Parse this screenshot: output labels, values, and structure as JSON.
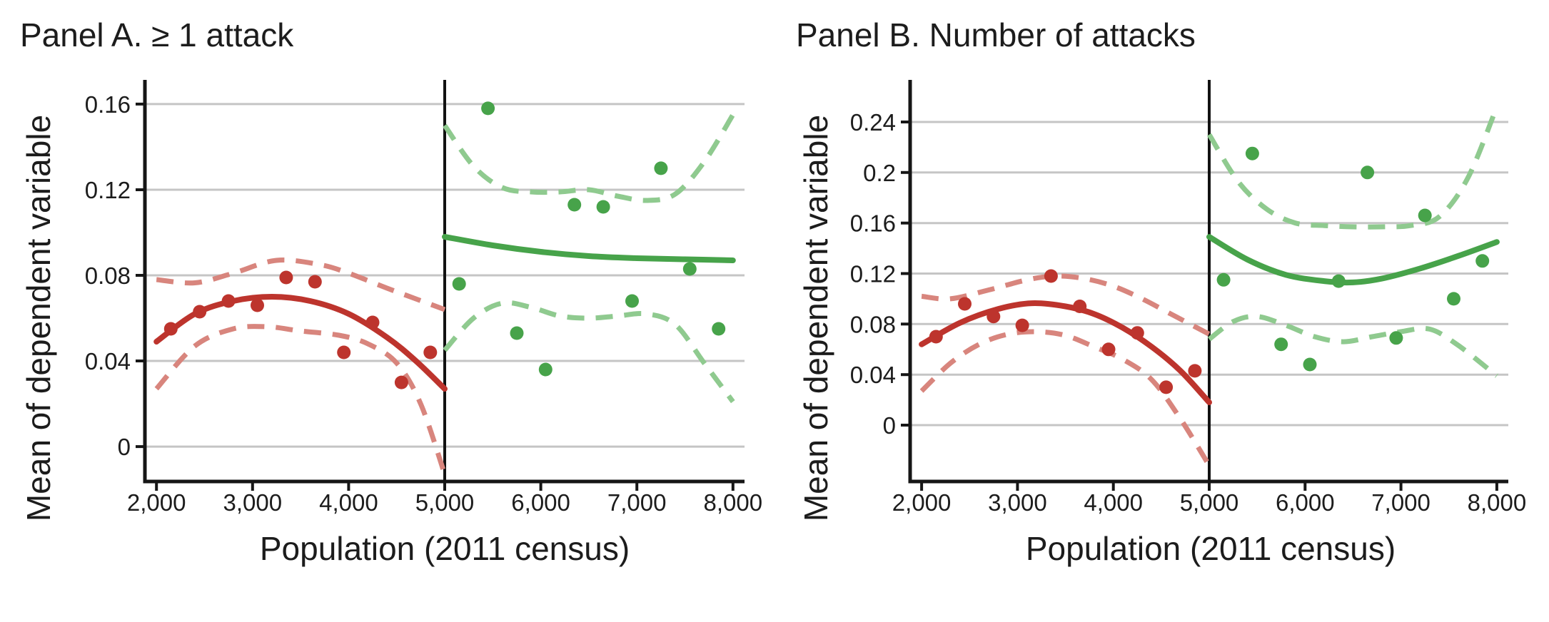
{
  "figure_type": "regression discontinuity binned scatter with quadratic fits and 95% CI bands",
  "colors": {
    "below_solid": "#bd342d",
    "below_dashed": "#d8857d",
    "above_solid": "#47a34a",
    "above_dashed": "#8fca8f",
    "gridline": "#c5c5c5",
    "axis": "#161616",
    "cutoff": "#121212",
    "text": "#1c1c1c"
  },
  "chart_data": [
    {
      "type": "scatter",
      "title": "Panel A. ≥ 1 attack",
      "xlabel": "Population (2011 census)",
      "ylabel": "Mean of dependent variable",
      "x_ticks": [
        2000,
        3000,
        4000,
        5000,
        6000,
        7000,
        8000
      ],
      "x_tick_labels": [
        "2,000",
        "3,000",
        "4,000",
        "5,000",
        "6,000",
        "7,000",
        "8,000"
      ],
      "y_ticks": [
        0,
        0.04,
        0.08,
        0.12,
        0.16
      ],
      "y_tick_labels": [
        "0",
        "0.04",
        "0.08",
        "0.12",
        "0.16"
      ],
      "xlim": [
        1880,
        8120
      ],
      "ylim": [
        -0.0163,
        0.1713
      ],
      "cutoff_x": 5000,
      "grid": "horizontal",
      "legend": "none",
      "series": [
        {
          "id": "ci-upper-below-cutoff",
          "kind": "line",
          "dash": true,
          "color_key": "below_dashed",
          "points": [
            [
              2000,
              0.078
            ],
            [
              2400,
              0.0765
            ],
            [
              2800,
              0.081
            ],
            [
              3250,
              0.087
            ],
            [
              3700,
              0.085
            ],
            [
              4000,
              0.081
            ],
            [
              4400,
              0.074
            ],
            [
              4700,
              0.069
            ],
            [
              5000,
              0.064
            ]
          ]
        },
        {
          "id": "ci-lower-below-cutoff",
          "kind": "line",
          "dash": true,
          "color_key": "below_dashed",
          "points": [
            [
              2000,
              0.027
            ],
            [
              2400,
              0.047
            ],
            [
              2800,
              0.055
            ],
            [
              3150,
              0.056
            ],
            [
              3500,
              0.054
            ],
            [
              3900,
              0.052
            ],
            [
              4200,
              0.048
            ],
            [
              4500,
              0.039
            ],
            [
              4750,
              0.02
            ],
            [
              5000,
              -0.013
            ]
          ]
        },
        {
          "id": "fit-below-cutoff",
          "kind": "line",
          "dash": false,
          "color_key": "below_solid",
          "points": [
            [
              2000,
              0.049
            ],
            [
              2400,
              0.062
            ],
            [
              2800,
              0.068
            ],
            [
              3200,
              0.07
            ],
            [
              3600,
              0.068
            ],
            [
              4000,
              0.062
            ],
            [
              4400,
              0.051
            ],
            [
              4700,
              0.04
            ],
            [
              5000,
              0.027
            ]
          ]
        },
        {
          "id": "ci-upper-above-cutoff",
          "kind": "line",
          "dash": true,
          "color_key": "above_dashed",
          "points": [
            [
              5000,
              0.15
            ],
            [
              5300,
              0.131
            ],
            [
              5600,
              0.121
            ],
            [
              5900,
              0.119
            ],
            [
              6200,
              0.119
            ],
            [
              6500,
              0.12
            ],
            [
              6800,
              0.117
            ],
            [
              7100,
              0.115
            ],
            [
              7400,
              0.118
            ],
            [
              7700,
              0.133
            ],
            [
              8000,
              0.155
            ]
          ]
        },
        {
          "id": "ci-lower-above-cutoff",
          "kind": "line",
          "dash": true,
          "color_key": "above_dashed",
          "points": [
            [
              5000,
              0.045
            ],
            [
              5300,
              0.06
            ],
            [
              5600,
              0.067
            ],
            [
              5900,
              0.065
            ],
            [
              6200,
              0.061
            ],
            [
              6500,
              0.06
            ],
            [
              6800,
              0.061
            ],
            [
              7100,
              0.062
            ],
            [
              7400,
              0.057
            ],
            [
              7700,
              0.039
            ],
            [
              8000,
              0.021
            ]
          ]
        },
        {
          "id": "fit-above-cutoff",
          "kind": "line",
          "dash": false,
          "color_key": "above_solid",
          "points": [
            [
              5000,
              0.098
            ],
            [
              5500,
              0.094
            ],
            [
              6000,
              0.091
            ],
            [
              6500,
              0.089
            ],
            [
              7000,
              0.088
            ],
            [
              7500,
              0.0875
            ],
            [
              8000,
              0.087
            ]
          ]
        },
        {
          "id": "binned-means-below-cutoff",
          "kind": "points",
          "color_key": "below_solid",
          "x": [
            2150,
            2450,
            2750,
            3050,
            3350,
            3650,
            3950,
            4250,
            4550,
            4850
          ],
          "y": [
            0.055,
            0.063,
            0.068,
            0.066,
            0.079,
            0.077,
            0.044,
            0.058,
            0.03,
            0.044
          ]
        },
        {
          "id": "binned-means-above-cutoff",
          "kind": "points",
          "color_key": "above_solid",
          "x": [
            5150,
            5450,
            5750,
            6050,
            6350,
            6650,
            6950,
            7250,
            7550,
            7850
          ],
          "y": [
            0.076,
            0.158,
            0.053,
            0.036,
            0.113,
            0.112,
            0.068,
            0.13,
            0.083,
            0.055
          ]
        }
      ]
    },
    {
      "type": "scatter",
      "title": "Panel B. Number of attacks",
      "xlabel": "Population (2011 census)",
      "ylabel": "Mean of dependent variable",
      "x_ticks": [
        2000,
        3000,
        4000,
        5000,
        6000,
        7000,
        8000
      ],
      "x_tick_labels": [
        "2,000",
        "3,000",
        "4,000",
        "5,000",
        "6,000",
        "7,000",
        "8,000"
      ],
      "y_ticks": [
        0,
        0.04,
        0.08,
        0.12,
        0.16,
        0.2,
        0.24
      ],
      "y_tick_labels": [
        "0",
        "0.04",
        "0.08",
        "0.12",
        "0.16",
        "0.2",
        "0.24"
      ],
      "xlim": [
        1880,
        8120
      ],
      "ylim": [
        -0.0446,
        0.2733
      ],
      "cutoff_x": 5000,
      "grid": "horizontal",
      "legend": "none",
      "series": [
        {
          "id": "ci-upper-below-cutoff",
          "kind": "line",
          "dash": true,
          "color_key": "below_dashed",
          "points": [
            [
              2000,
              0.102
            ],
            [
              2300,
              0.1
            ],
            [
              2700,
              0.107
            ],
            [
              3100,
              0.115
            ],
            [
              3400,
              0.118
            ],
            [
              3700,
              0.116
            ],
            [
              4000,
              0.11
            ],
            [
              4300,
              0.1
            ],
            [
              4600,
              0.088
            ],
            [
              4800,
              0.08
            ],
            [
              5000,
              0.072
            ]
          ]
        },
        {
          "id": "ci-lower-below-cutoff",
          "kind": "line",
          "dash": true,
          "color_key": "below_dashed",
          "points": [
            [
              2000,
              0.027
            ],
            [
              2300,
              0.049
            ],
            [
              2600,
              0.064
            ],
            [
              2900,
              0.072
            ],
            [
              3200,
              0.074
            ],
            [
              3500,
              0.071
            ],
            [
              3800,
              0.062
            ],
            [
              4100,
              0.052
            ],
            [
              4400,
              0.036
            ],
            [
              4700,
              0.005
            ],
            [
              5000,
              -0.032
            ]
          ]
        },
        {
          "id": "fit-below-cutoff",
          "kind": "line",
          "dash": false,
          "color_key": "below_solid",
          "points": [
            [
              2000,
              0.064
            ],
            [
              2400,
              0.081
            ],
            [
              2800,
              0.092
            ],
            [
              3150,
              0.0965
            ],
            [
              3500,
              0.094
            ],
            [
              3800,
              0.088
            ],
            [
              4100,
              0.077
            ],
            [
              4400,
              0.062
            ],
            [
              4700,
              0.043
            ],
            [
              5000,
              0.018
            ]
          ]
        },
        {
          "id": "ci-upper-above-cutoff",
          "kind": "line",
          "dash": true,
          "color_key": "above_dashed",
          "points": [
            [
              5000,
              0.23
            ],
            [
              5300,
              0.193
            ],
            [
              5600,
              0.171
            ],
            [
              5900,
              0.16
            ],
            [
              6200,
              0.158
            ],
            [
              6500,
              0.157
            ],
            [
              6800,
              0.157
            ],
            [
              7100,
              0.158
            ],
            [
              7400,
              0.165
            ],
            [
              7700,
              0.196
            ],
            [
              8000,
              0.252
            ]
          ]
        },
        {
          "id": "ci-lower-above-cutoff",
          "kind": "line",
          "dash": true,
          "color_key": "above_dashed",
          "points": [
            [
              5000,
              0.068
            ],
            [
              5250,
              0.082
            ],
            [
              5500,
              0.086
            ],
            [
              5800,
              0.079
            ],
            [
              6100,
              0.07
            ],
            [
              6400,
              0.066
            ],
            [
              6700,
              0.07
            ],
            [
              7000,
              0.074
            ],
            [
              7300,
              0.076
            ],
            [
              7600,
              0.063
            ],
            [
              8000,
              0.039
            ]
          ]
        },
        {
          "id": "fit-above-cutoff",
          "kind": "line",
          "dash": false,
          "color_key": "above_solid",
          "points": [
            [
              5000,
              0.149
            ],
            [
              5400,
              0.131
            ],
            [
              5800,
              0.119
            ],
            [
              6200,
              0.114
            ],
            [
              6500,
              0.113
            ],
            [
              6800,
              0.116
            ],
            [
              7200,
              0.124
            ],
            [
              7600,
              0.134
            ],
            [
              8000,
              0.145
            ]
          ]
        },
        {
          "id": "binned-means-below-cutoff",
          "kind": "points",
          "color_key": "below_solid",
          "x": [
            2150,
            2450,
            2750,
            3050,
            3350,
            3650,
            3950,
            4250,
            4550,
            4850
          ],
          "y": [
            0.07,
            0.096,
            0.086,
            0.079,
            0.118,
            0.094,
            0.06,
            0.073,
            0.03,
            0.043
          ]
        },
        {
          "id": "binned-means-above-cutoff",
          "kind": "points",
          "color_key": "above_solid",
          "x": [
            5150,
            5450,
            5750,
            6050,
            6350,
            6650,
            6950,
            7250,
            7550,
            7850
          ],
          "y": [
            0.115,
            0.215,
            0.064,
            0.048,
            0.114,
            0.2,
            0.069,
            0.166,
            0.1,
            0.13
          ]
        }
      ]
    }
  ]
}
